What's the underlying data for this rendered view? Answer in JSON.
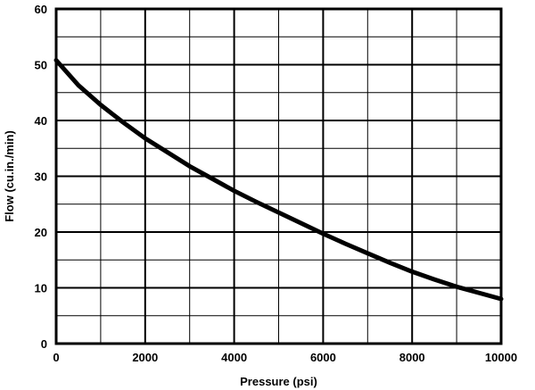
{
  "chart_data": {
    "type": "line",
    "title": "",
    "xlabel": "Pressure (psi)",
    "ylabel": "Flow (cu.in./min)",
    "xlim": [
      0,
      10000
    ],
    "ylim": [
      0,
      60
    ],
    "x_ticks": [
      "0",
      "2000",
      "4000",
      "6000",
      "8000",
      "10000"
    ],
    "y_ticks": [
      "0",
      "10",
      "20",
      "30",
      "40",
      "50",
      "60"
    ],
    "grid": true,
    "x_minor_step": 1000,
    "y_minor_step": 5,
    "series": [
      {
        "x": [
          0,
          500,
          1000,
          1500,
          2000,
          2500,
          3000,
          3500,
          4000,
          4500,
          5000,
          5500,
          6000,
          6500,
          7000,
          7500,
          8000,
          8500,
          9000,
          9500,
          10000
        ],
        "y": [
          50.8,
          46.3,
          42.8,
          39.7,
          36.8,
          34.3,
          31.8,
          29.6,
          27.4,
          25.4,
          23.5,
          21.6,
          19.7,
          17.9,
          16.2,
          14.5,
          12.9,
          11.5,
          10.2,
          9.1,
          8.0
        ]
      }
    ]
  }
}
